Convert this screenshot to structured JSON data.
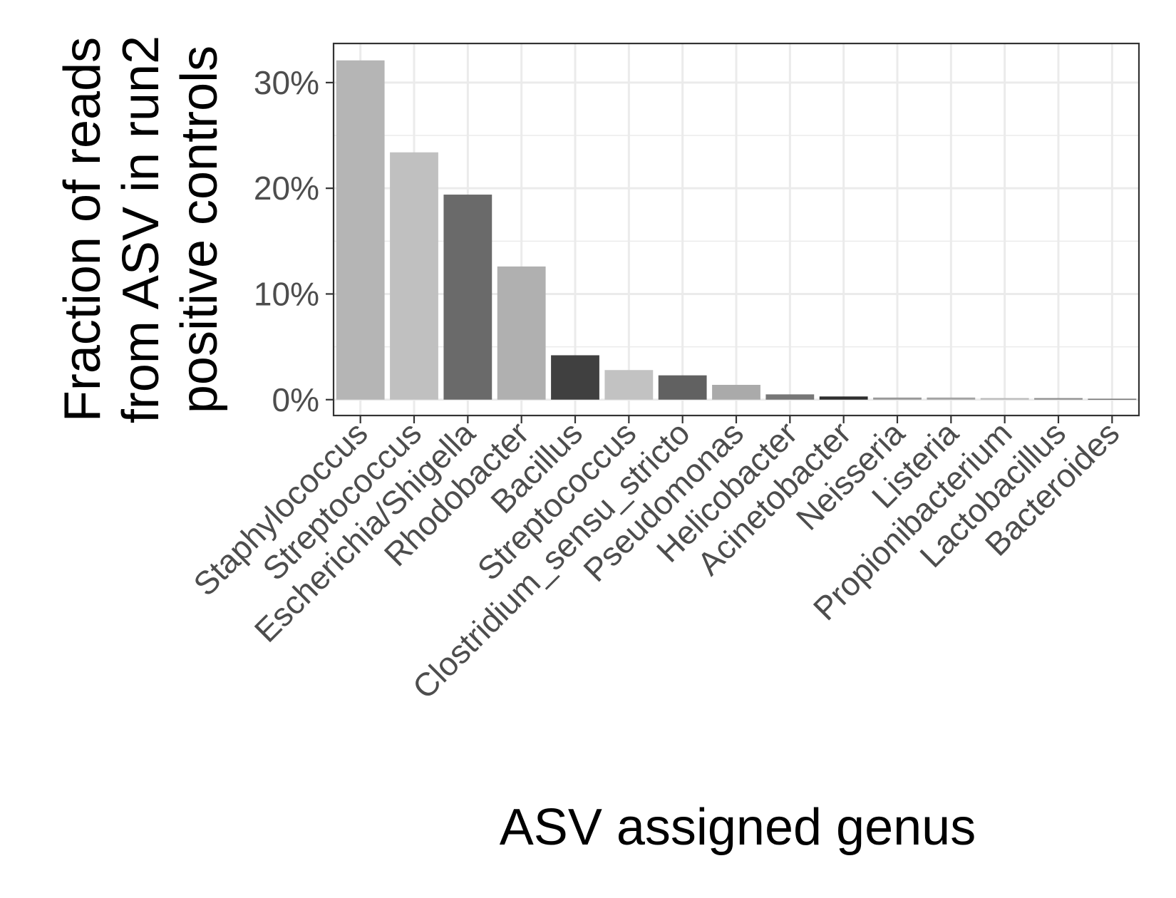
{
  "chart_data": {
    "type": "bar",
    "xlabel": "ASV assigned genus",
    "ylabel_lines": [
      "Fraction of reads",
      "from ASV in run2",
      "positive controls"
    ],
    "ylim": [
      -0.015,
      0.337
    ],
    "y_ticks": [
      {
        "value": 0.0,
        "label": "0%"
      },
      {
        "value": 0.1,
        "label": "10%"
      },
      {
        "value": 0.2,
        "label": "20%"
      },
      {
        "value": 0.3,
        "label": "30%"
      }
    ],
    "grid": true,
    "categories": [
      "Staphylococcus",
      "Streptococcus",
      "Escherichia/Shigella",
      "Rhodobacter",
      "Bacillus",
      "Streptococcus",
      "Clostridium_sensu_stricto",
      "Pseudomonas",
      "Helicobacter",
      "Acinetobacter",
      "Neisseria",
      "Listeria",
      "Propionibacterium",
      "Lactobacillus",
      "Bacteroides"
    ],
    "values": [
      0.321,
      0.234,
      0.194,
      0.126,
      0.042,
      0.028,
      0.023,
      0.014,
      0.005,
      0.003,
      0.002,
      0.002,
      0.0015,
      0.0015,
      0.0008
    ],
    "colors": [
      "#b5b5b5",
      "#c0c0c0",
      "#6a6a6a",
      "#b0b0b0",
      "#404040",
      "#c2c2c2",
      "#616161",
      "#aaaaaa",
      "#777777",
      "#2e2e2e",
      "#999999",
      "#a3a3a3",
      "#b9b9b9",
      "#8e8e8e",
      "#555555"
    ]
  }
}
